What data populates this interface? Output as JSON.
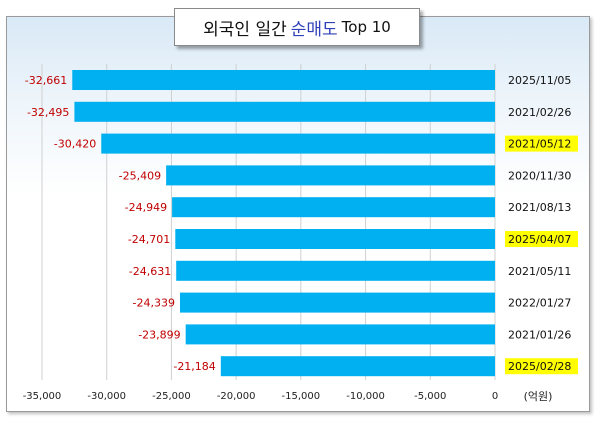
{
  "title": {
    "part1": "외국인 일간",
    "highlight": "순매도",
    "part2": "Top 10"
  },
  "unit_label": "(억원)",
  "colors": {
    "bar": "#00b0f0",
    "value_text": "#c00000",
    "date_highlight": "#ffff00",
    "grid": "#d0d0d0"
  },
  "chart_data": {
    "type": "bar",
    "orientation": "horizontal",
    "title": "외국인 일간 순매도 Top 10",
    "xlabel": "(억원)",
    "ylabel": "",
    "xlim": [
      -35000,
      0
    ],
    "xticks": [
      -35000,
      -30000,
      -25000,
      -20000,
      -15000,
      -10000,
      -5000,
      0
    ],
    "xtick_labels": [
      "-35,000",
      "-30,000",
      "-25,000",
      "-20,000",
      "-15,000",
      "-10,000",
      "-5,000",
      "0"
    ],
    "grid": "vertical",
    "categories": [
      "2025/11/05",
      "2021/02/26",
      "2021/05/12",
      "2020/11/30",
      "2021/08/13",
      "2025/04/07",
      "2021/05/11",
      "2022/01/27",
      "2021/01/26",
      "2025/02/28"
    ],
    "values": [
      -32661,
      -32495,
      -30420,
      -25409,
      -24949,
      -24701,
      -24631,
      -24339,
      -23899,
      -21184
    ],
    "value_labels": [
      "-32,661",
      "-32,495",
      "-30,420",
      "-25,409",
      "-24,949",
      "-24,701",
      "-24,631",
      "-24,339",
      "-23,899",
      "-21,184"
    ],
    "highlighted": [
      false,
      false,
      true,
      false,
      false,
      true,
      false,
      false,
      false,
      true
    ]
  }
}
